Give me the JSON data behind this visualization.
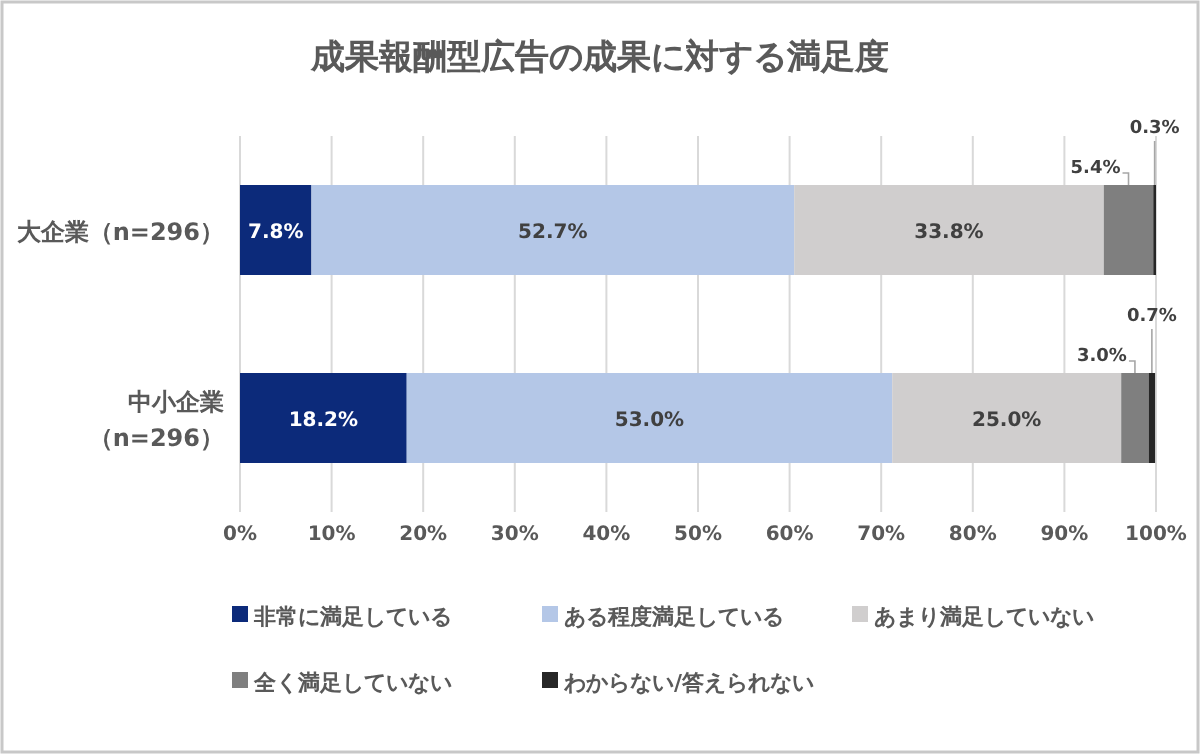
{
  "chart_data": {
    "type": "bar",
    "title": "成果報酬型広告の成果に対する満足度",
    "orientation": "horizontal",
    "stacked": true,
    "categories": [
      "大企業（n=296）",
      "中小企業（n=296）"
    ],
    "series": [
      {
        "name": "非常に満足している",
        "color": "#0c2a7a",
        "values": [
          7.8,
          18.2
        ],
        "value_labels": [
          "7.8%",
          "18.2%"
        ]
      },
      {
        "name": "ある程度満足している",
        "color": "#b4c7e7",
        "values": [
          52.7,
          53.0
        ],
        "value_labels": [
          "52.7%",
          "53.0%"
        ]
      },
      {
        "name": "あまり満足していない",
        "color": "#d0cece",
        "values": [
          33.8,
          25.0
        ],
        "value_labels": [
          "33.8%",
          "25.0%"
        ]
      },
      {
        "name": "全く満足していない",
        "color": "#7f7f7f",
        "values": [
          5.4,
          3.0
        ],
        "value_labels": [
          "5.4%",
          "3.0%"
        ]
      },
      {
        "name": "わからない/答えられない",
        "color": "#262626",
        "values": [
          0.3,
          0.7
        ],
        "value_labels": [
          "0.3%",
          "0.7%"
        ]
      }
    ],
    "xlim": [
      0,
      100
    ],
    "xticks": [
      {
        "value": 0,
        "label": "0%"
      },
      {
        "value": 10,
        "label": "10%"
      },
      {
        "value": 20,
        "label": "20%"
      },
      {
        "value": 30,
        "label": "30%"
      },
      {
        "value": 40,
        "label": "40%"
      },
      {
        "value": 50,
        "label": "50%"
      },
      {
        "value": 60,
        "label": "60%"
      },
      {
        "value": 70,
        "label": "70%"
      },
      {
        "value": 80,
        "label": "80%"
      },
      {
        "value": 90,
        "label": "90%"
      },
      {
        "value": 100,
        "label": "100%"
      }
    ],
    "grid": "x",
    "legend": "bottom"
  }
}
